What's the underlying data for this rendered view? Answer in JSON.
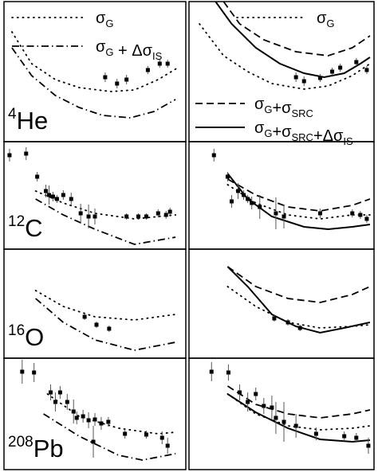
{
  "chart_data": [
    {
      "type": "line",
      "label": "4He",
      "xlim": [
        0,
        230
      ],
      "ylim": [
        0,
        176
      ],
      "series": [
        {
          "name": "σG",
          "style": "dotted",
          "x": [
            10,
            35,
            65,
            95,
            135,
            165,
            195,
            220
          ],
          "values": [
            138,
            98,
            78,
            68,
            63,
            65,
            78,
            93
          ]
        },
        {
          "name": "σG + ΔσIS",
          "style": "dash-dot",
          "x": [
            10,
            35,
            65,
            95,
            125,
            160,
            190,
            217
          ],
          "values": [
            118,
            83,
            58,
            43,
            33,
            30,
            38,
            53
          ]
        }
      ],
      "points": {
        "x": [
          128,
          143,
          155,
          182,
          197,
          207
        ],
        "values": [
          81,
          73,
          78,
          90,
          98,
          98
        ],
        "errors": [
          6,
          6,
          6,
          5,
          5,
          5
        ]
      }
    },
    {
      "type": "line",
      "xlim": [
        0,
        230
      ],
      "ylim": [
        0,
        176
      ],
      "series": [
        {
          "name": "σG",
          "style": "dotted",
          "x": [
            13,
            43,
            73,
            103,
            143,
            173,
            203,
            225
          ],
          "values": [
            148,
            108,
            88,
            73,
            66,
            70,
            83,
            98
          ]
        },
        {
          "name": "σG+σSRC",
          "style": "dashed",
          "x": [
            43,
            63,
            93,
            133,
            173,
            203,
            225
          ],
          "values": [
            176,
            148,
            128,
            113,
            108,
            118,
            133
          ]
        },
        {
          "name": "σG+σSRC+ΔσIS",
          "style": "solid",
          "x": [
            33,
            53,
            83,
            113,
            143,
            168,
            193,
            213,
            225
          ],
          "values": [
            176,
            148,
            118,
            98,
            86,
            81,
            86,
            98,
            106
          ]
        }
      ],
      "points": {
        "x": [
          133,
          143,
          163,
          178,
          188,
          208,
          221
        ],
        "values": [
          81,
          76,
          80,
          88,
          93,
          100,
          90
        ],
        "errors": [
          6,
          6,
          5,
          5,
          5,
          5,
          5
        ]
      }
    },
    {
      "type": "line",
      "label": "12C",
      "xlim": [
        0,
        230
      ],
      "ylim": [
        0,
        135
      ],
      "series": [
        {
          "style": "dotted",
          "x": [
            40,
            75,
            115,
            165,
            217
          ],
          "values": [
            73,
            58,
            45,
            38,
            43
          ]
        },
        {
          "style": "dash-dot",
          "x": [
            40,
            75,
            115,
            165,
            217
          ],
          "values": [
            63,
            43,
            25,
            6,
            15
          ]
        }
      ],
      "points": {
        "x": [
          7,
          28,
          42,
          53,
          57,
          62,
          67,
          75,
          85,
          97,
          107,
          115,
          155,
          170,
          180,
          195,
          205,
          210
        ],
        "values": [
          118,
          120,
          91,
          73,
          68,
          66,
          63,
          68,
          63,
          45,
          41,
          41,
          41,
          41,
          41,
          45,
          43,
          47
        ],
        "errors": [
          8,
          8,
          6,
          8,
          12,
          6,
          5,
          6,
          8,
          12,
          15,
          10,
          4,
          4,
          4,
          5,
          5,
          5
        ]
      }
    },
    {
      "type": "line",
      "xlim": [
        0,
        230
      ],
      "ylim": [
        0,
        135
      ],
      "series": [
        {
          "style": "dashed",
          "x": [
            48,
            83,
            123,
            163,
            203,
            225
          ],
          "values": [
            88,
            68,
            53,
            48,
            55,
            63
          ]
        },
        {
          "style": "dotted",
          "x": [
            48,
            83,
            123,
            163,
            203,
            225
          ],
          "values": [
            81,
            58,
            43,
            38,
            43,
            43
          ]
        },
        {
          "style": "solid",
          "x": [
            48,
            73,
            103,
            143,
            173,
            203,
            225
          ],
          "values": [
            95,
            63,
            41,
            28,
            25,
            28,
            31
          ]
        }
      ],
      "points": {
        "x": [
          31,
          48,
          53,
          61,
          68,
          73,
          78,
          88,
          108,
          118,
          163,
          203,
          213,
          221
        ],
        "values": [
          118,
          91,
          60,
          73,
          68,
          63,
          58,
          53,
          45,
          41,
          45,
          45,
          43,
          38
        ],
        "errors": [
          8,
          6,
          8,
          10,
          6,
          5,
          8,
          15,
          20,
          15,
          6,
          5,
          5,
          5
        ]
      }
    },
    {
      "type": "line",
      "label": "16O",
      "xlim": [
        0,
        230
      ],
      "ylim": [
        0,
        137
      ],
      "series": [
        {
          "style": "dotted",
          "x": [
            40,
            75,
            115,
            165,
            217
          ],
          "values": [
            85,
            65,
            52,
            48,
            55
          ]
        },
        {
          "style": "dash-dot",
          "x": [
            40,
            75,
            115,
            165,
            217
          ],
          "values": [
            75,
            45,
            23,
            10,
            20
          ]
        }
      ],
      "points": {
        "x": [
          102,
          117,
          133
        ],
        "values": [
          52,
          42,
          37
        ],
        "errors": [
          4,
          4,
          4
        ]
      }
    },
    {
      "type": "line",
      "xlim": [
        0,
        230
      ],
      "ylim": [
        0,
        137
      ],
      "series": [
        {
          "style": "dashed",
          "x": [
            48,
            83,
            123,
            163,
            203,
            225
          ],
          "values": [
            115,
            90,
            75,
            70,
            80,
            90
          ]
        },
        {
          "style": "dotted",
          "x": [
            48,
            83,
            123,
            163,
            203,
            225
          ],
          "values": [
            90,
            65,
            45,
            38,
            40,
            42
          ]
        },
        {
          "style": "solid",
          "x": [
            48,
            73,
            103,
            133,
            163,
            193,
            225
          ],
          "values": [
            115,
            90,
            55,
            40,
            32,
            38,
            45
          ]
        }
      ],
      "points": {
        "x": [
          106,
          123,
          138
        ],
        "values": [
          50,
          45,
          38
        ],
        "errors": [
          4,
          4,
          4
        ]
      }
    },
    {
      "type": "line",
      "label": "208Pb",
      "xlim": [
        0,
        230
      ],
      "ylim": [
        0,
        140
      ],
      "series": [
        {
          "style": "dotted",
          "x": [
            55,
            95,
            145,
            195,
            217
          ],
          "values": [
            95,
            67,
            52,
            45,
            47
          ]
        },
        {
          "style": "dash-dot",
          "x": [
            50,
            95,
            145,
            175,
            217
          ],
          "values": [
            70,
            42,
            18,
            12,
            20
          ]
        }
      ],
      "points": {
        "x": [
          23,
          38,
          59,
          65,
          71,
          80,
          88,
          92,
          100,
          107,
          113,
          115,
          123,
          132,
          153,
          180,
          200,
          207
        ],
        "values": [
          123,
          122,
          97,
          85,
          97,
          85,
          73,
          65,
          67,
          62,
          35,
          63,
          58,
          60,
          45,
          44,
          40,
          30
        ],
        "errors": [
          15,
          12,
          10,
          12,
          8,
          10,
          15,
          8,
          8,
          10,
          20,
          8,
          8,
          6,
          6,
          5,
          8,
          10
        ]
      }
    },
    {
      "type": "line",
      "xlim": [
        0,
        230
      ],
      "ylim": [
        0,
        140
      ],
      "series": [
        {
          "style": "dashed",
          "x": [
            48,
            83,
            123,
            163,
            203,
            225
          ],
          "values": [
            105,
            82,
            70,
            65,
            70,
            75
          ]
        },
        {
          "style": "dotted",
          "x": [
            48,
            83,
            123,
            163,
            203,
            225
          ],
          "values": [
            95,
            70,
            55,
            50,
            52,
            55
          ]
        },
        {
          "style": "solid",
          "x": [
            48,
            83,
            123,
            163,
            203,
            225
          ],
          "values": [
            95,
            72,
            52,
            38,
            35,
            37
          ]
        }
      ],
      "points": {
        "x": [
          28,
          49,
          63,
          73,
          83,
          93,
          103,
          108,
          118,
          133,
          158,
          193,
          208,
          223
        ],
        "values": [
          123,
          122,
          97,
          85,
          95,
          80,
          78,
          65,
          60,
          55,
          45,
          42,
          40,
          30
        ],
        "errors": [
          12,
          10,
          10,
          12,
          8,
          10,
          15,
          20,
          25,
          15,
          8,
          6,
          6,
          10
        ]
      }
    }
  ]
}
